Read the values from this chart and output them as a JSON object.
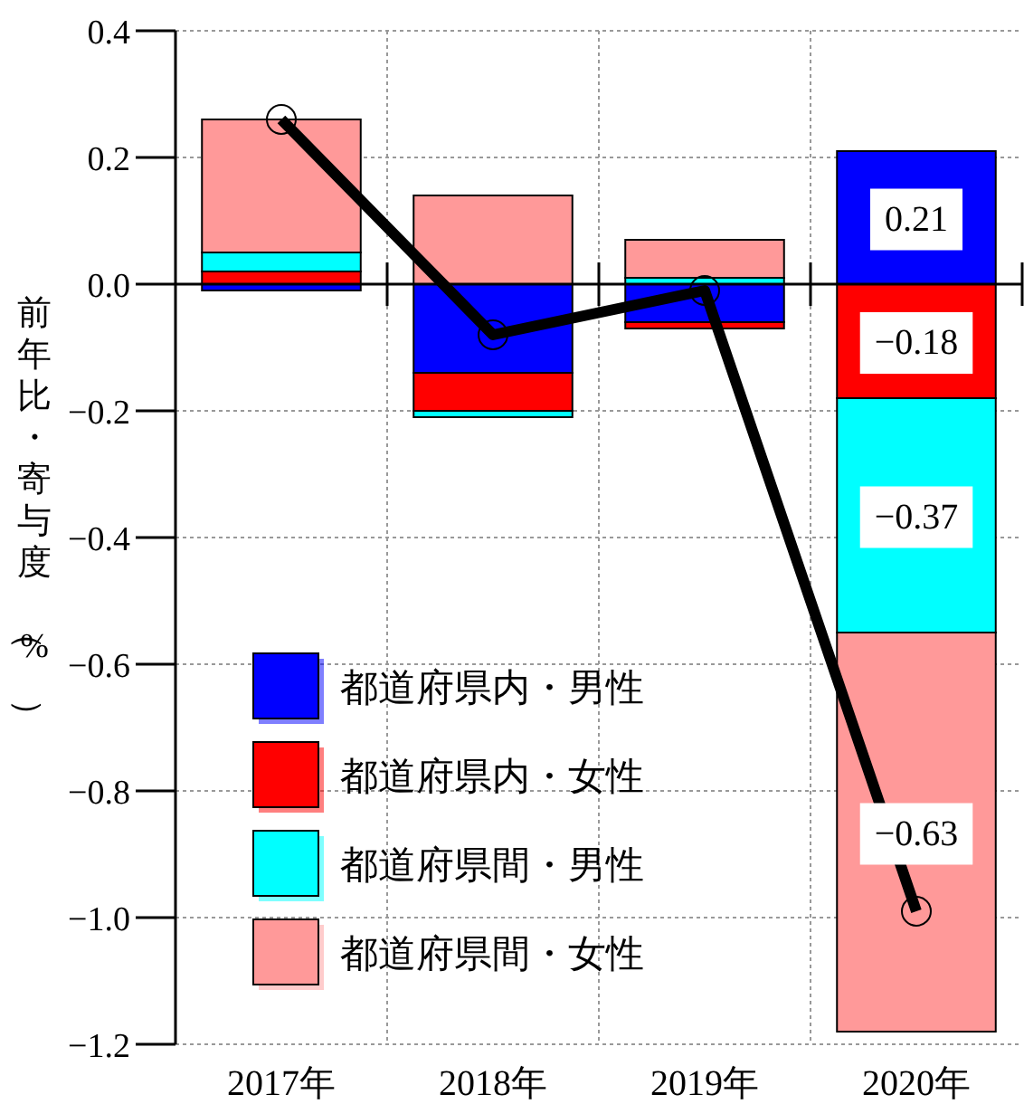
{
  "chart_data": {
    "type": "bar",
    "stacked": true,
    "ylabel": "前年比・寄与度（%）",
    "categories": [
      "2017年",
      "2018年",
      "2019年",
      "2020年"
    ],
    "series": [
      {
        "name": "都道府県内・男性",
        "color": "#0000ff",
        "values": [
          -0.01,
          -0.14,
          -0.06,
          0.21
        ],
        "value_labels": [
          null,
          null,
          null,
          "0.21"
        ]
      },
      {
        "name": "都道府県内・女性",
        "color": "#ff0000",
        "values": [
          0.02,
          -0.06,
          -0.01,
          -0.18
        ],
        "value_labels": [
          null,
          null,
          null,
          "−0.18"
        ]
      },
      {
        "name": "都道府県間・男性",
        "color": "#00ffff",
        "values": [
          0.03,
          -0.01,
          0.01,
          -0.37
        ],
        "value_labels": [
          null,
          null,
          null,
          "−0.37"
        ]
      },
      {
        "name": "都道府県間・女性",
        "color": "#ff9999",
        "values": [
          0.21,
          0.14,
          0.06,
          -0.63
        ],
        "value_labels": [
          null,
          null,
          null,
          "−0.63"
        ]
      },
      {
        "type": "line",
        "color": "#000000",
        "values": [
          0.26,
          -0.08,
          -0.01,
          -0.99
        ],
        "marker": "circle"
      }
    ],
    "ylim": [
      -1.2,
      0.4
    ],
    "yticks": [
      {
        "value": -1.2,
        "label": "−1.2"
      },
      {
        "value": -1.0,
        "label": "−1.0"
      },
      {
        "value": -0.8,
        "label": "−0.8"
      },
      {
        "value": -0.6,
        "label": "−0.6"
      },
      {
        "value": -0.4,
        "label": "−0.4"
      },
      {
        "value": -0.2,
        "label": "−0.2"
      },
      {
        "value": 0,
        "label": "0.0"
      },
      {
        "value": 0.2,
        "label": "0.2"
      },
      {
        "value": 0.4,
        "label": "0.4"
      }
    ],
    "grid": true,
    "legend": "bottom left"
  }
}
